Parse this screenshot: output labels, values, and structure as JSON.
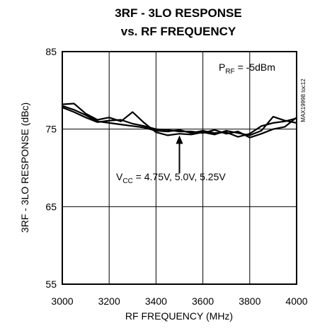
{
  "chart_data": {
    "type": "line",
    "title_line1": "3RF - 3LO RESPONSE",
    "title_line2": "vs. RF FREQUENCY",
    "xlabel": "RF FREQUENCY (MHz)",
    "ylabel": "3RF - 3LO RESPONSE (dBc)",
    "xlim": [
      3000,
      4000
    ],
    "ylim": [
      55,
      85
    ],
    "xticks": [
      3000,
      3200,
      3400,
      3600,
      3800,
      4000
    ],
    "yticks": [
      55,
      65,
      75,
      85
    ],
    "grid": true,
    "condition": {
      "main": "P",
      "sub": "RF",
      "rest": " = -5dBm"
    },
    "annotation": {
      "main": "V",
      "sub": "CC",
      "rest": " = 4.75V, 5.0V, 5.25V",
      "arrow_x": 3500,
      "arrow_from_y": 69.3,
      "arrow_to_y": 74.2
    },
    "part_code": "MAX19998 toc12",
    "series": [
      {
        "x": [
          3000,
          3050,
          3100,
          3150,
          3200,
          3250,
          3300,
          3350,
          3400,
          3450,
          3500,
          3550,
          3600,
          3650,
          3700,
          3750,
          3800,
          3850,
          3900,
          3950,
          4000
        ],
        "values": [
          78.2,
          78.3,
          77.0,
          76.2,
          76.5,
          76.0,
          77.2,
          75.8,
          74.6,
          74.2,
          74.4,
          74.3,
          74.6,
          74.3,
          74.8,
          74.5,
          74.2,
          74.8,
          76.6,
          76.1,
          75.8
        ]
      },
      {
        "x": [
          3000,
          3050,
          3100,
          3150,
          3200,
          3250,
          3300,
          3350,
          3400,
          3450,
          3500,
          3550,
          3600,
          3650,
          3700,
          3750,
          3800,
          3850,
          3900,
          3950,
          4000
        ],
        "values": [
          78.0,
          77.5,
          76.8,
          76.0,
          75.8,
          75.6,
          75.4,
          75.2,
          74.8,
          74.7,
          74.9,
          74.5,
          74.8,
          74.5,
          74.6,
          74.0,
          74.4,
          75.4,
          75.8,
          76.0,
          76.4
        ]
      },
      {
        "x": [
          3000,
          3050,
          3100,
          3150,
          3200,
          3250,
          3300,
          3350,
          3400,
          3450,
          3500,
          3550,
          3600,
          3650,
          3700,
          3750,
          3800,
          3850,
          3900,
          3950,
          4000
        ],
        "values": [
          77.8,
          77.2,
          76.5,
          75.9,
          76.1,
          76.2,
          75.7,
          75.4,
          75.0,
          74.9,
          74.7,
          74.7,
          74.5,
          74.9,
          74.4,
          74.7,
          73.9,
          74.4,
          75.0,
          75.3,
          76.5
        ]
      }
    ]
  }
}
